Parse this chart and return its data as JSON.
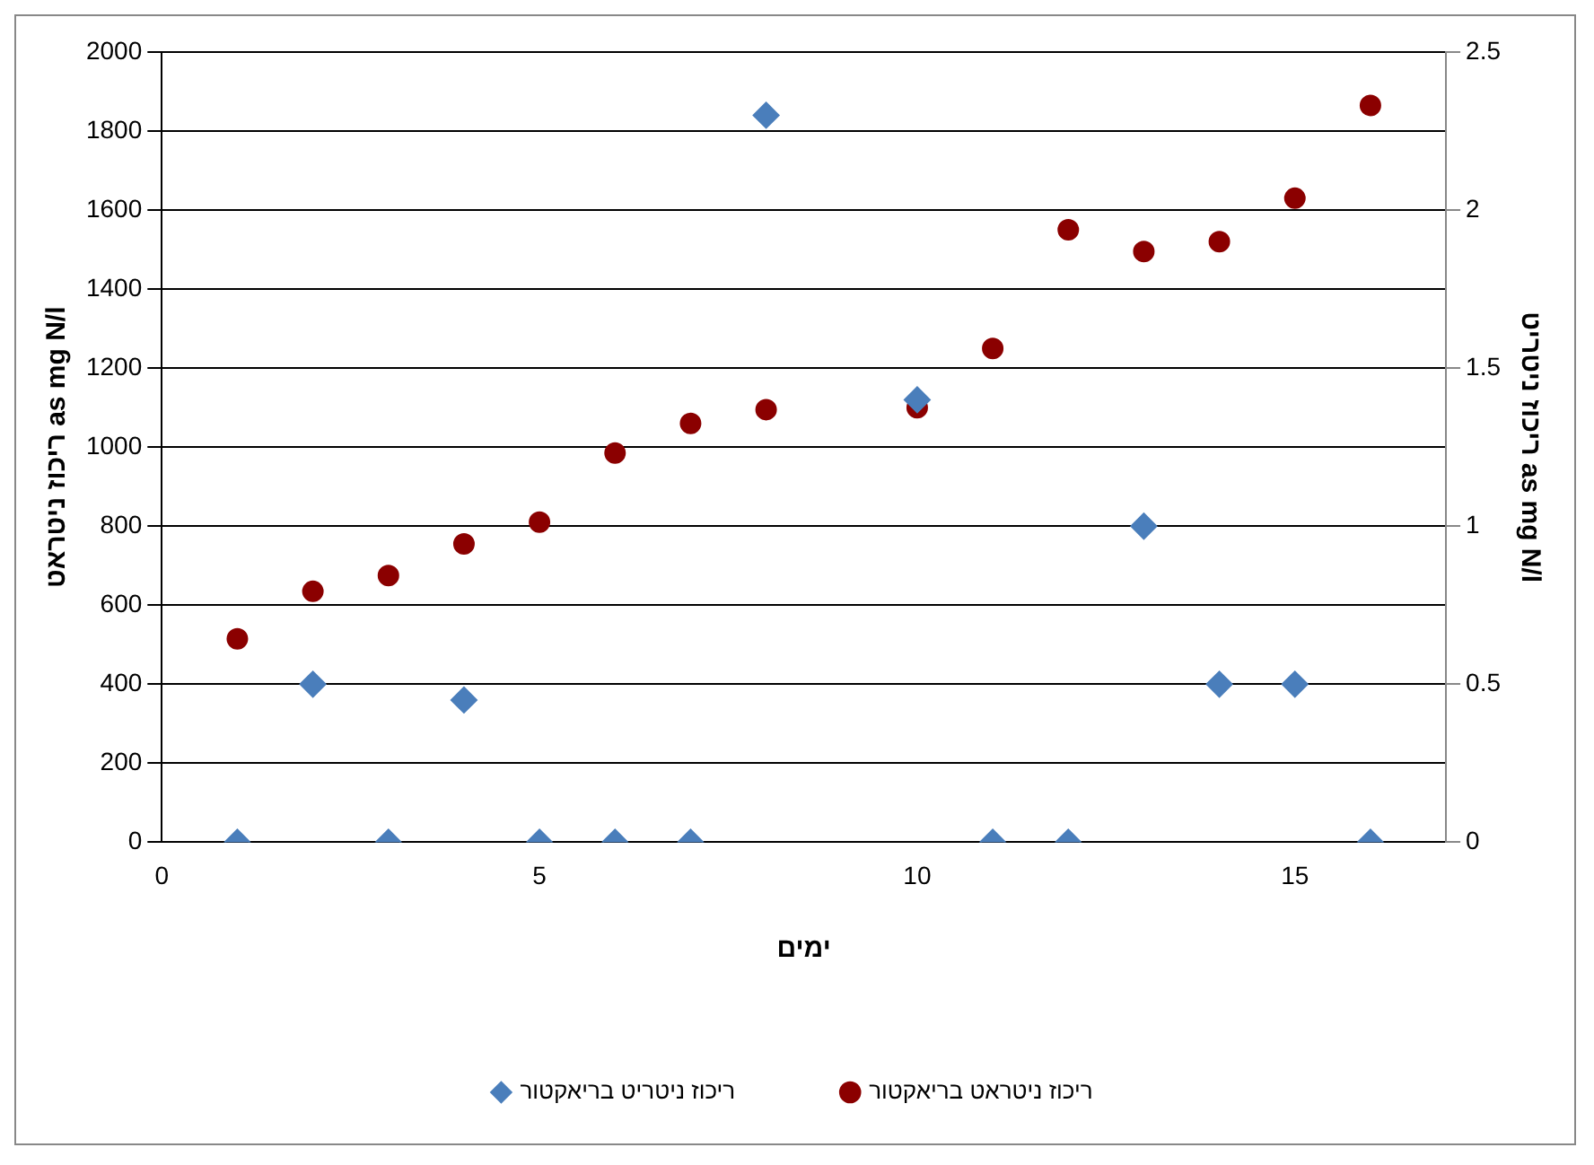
{
  "chart_data": {
    "type": "scatter",
    "xlabel": "ימים",
    "ylabel": "ריכוז ניטראט as mg N/l",
    "y2label": "ריכוז ניטריט as mg N/l",
    "x": [
      1,
      2,
      3,
      4,
      5,
      6,
      7,
      8,
      10,
      11,
      12,
      13,
      14,
      15,
      16
    ],
    "series": [
      {
        "name": "ריכוז ניטראט בריאקטור",
        "color": "#8b0000",
        "marker": "circle",
        "values": [
          515,
          635,
          675,
          755,
          810,
          985,
          1060,
          1095,
          1100,
          1250,
          1550,
          1495,
          1520,
          1630,
          1865
        ]
      },
      {
        "name": "ריכוז ניטריט בריאקטור",
        "color": "#4a7ebb",
        "marker": "diamond",
        "axis": "y2",
        "values": [
          0,
          0.5,
          0,
          0.45,
          0,
          0,
          0,
          2.3,
          1.4,
          0,
          0,
          1.0,
          0.5,
          0.5,
          0
        ]
      }
    ],
    "xlim": [
      0,
      17
    ],
    "xticks": [
      0,
      5,
      10,
      15
    ],
    "ylim": [
      0,
      2000
    ],
    "yticks": [
      0,
      200,
      400,
      600,
      800,
      1000,
      1200,
      1400,
      1600,
      1800,
      2000
    ],
    "y2lim": [
      0,
      2.5
    ],
    "y2ticks": [
      0,
      0.5,
      1,
      1.5,
      2,
      2.5
    ],
    "grid": "y",
    "legend": "bottom"
  }
}
